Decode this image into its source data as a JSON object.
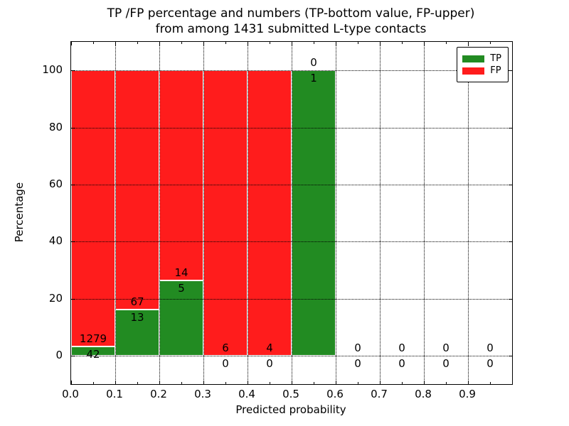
{
  "chart_data": {
    "type": "bar",
    "variant": "stacked-percentage",
    "title_line1": "TP /FP percentage and numbers (TP-bottom value, FP-upper)",
    "title_line2": "from among 1431 submitted L-type contacts",
    "total_contacts": 1431,
    "xlabel": "Predicted probability",
    "ylabel": "Percentage",
    "xlim": [
      0.0,
      1.0
    ],
    "ylim": [
      -10,
      110
    ],
    "grid": true,
    "yticks": [
      0,
      20,
      40,
      60,
      80,
      100
    ],
    "xtick_labels": [
      "0.0",
      "0.1",
      "0.2",
      "0.3",
      "0.4",
      "0.5",
      "0.6",
      "0.7",
      "0.8",
      "0.9"
    ],
    "bins": [
      {
        "range": "0.0-0.1",
        "tp": 42,
        "fp": 1279,
        "tp_pct": 3.18,
        "fp_pct": 96.82
      },
      {
        "range": "0.1-0.2",
        "tp": 13,
        "fp": 67,
        "tp_pct": 16.25,
        "fp_pct": 83.75
      },
      {
        "range": "0.2-0.3",
        "tp": 5,
        "fp": 14,
        "tp_pct": 26.32,
        "fp_pct": 73.68
      },
      {
        "range": "0.3-0.4",
        "tp": 0,
        "fp": 6,
        "tp_pct": 0,
        "fp_pct": 100
      },
      {
        "range": "0.4-0.5",
        "tp": 0,
        "fp": 4,
        "tp_pct": 0,
        "fp_pct": 100
      },
      {
        "range": "0.5-0.6",
        "tp": 1,
        "fp": 0,
        "tp_pct": 100,
        "fp_pct": 0
      },
      {
        "range": "0.6-0.7",
        "tp": 0,
        "fp": 0,
        "tp_pct": 0,
        "fp_pct": 0
      },
      {
        "range": "0.7-0.8",
        "tp": 0,
        "fp": 0,
        "tp_pct": 0,
        "fp_pct": 0
      },
      {
        "range": "0.8-0.9",
        "tp": 0,
        "fp": 0,
        "tp_pct": 0,
        "fp_pct": 0
      },
      {
        "range": "0.9-1.0",
        "tp": 0,
        "fp": 0,
        "tp_pct": 0,
        "fp_pct": 0
      }
    ],
    "legend": {
      "position": "upper-right",
      "items": [
        {
          "label": "TP",
          "color": "#228b22"
        },
        {
          "label": "FP",
          "color": "#ff1c1c"
        }
      ]
    },
    "colors": {
      "tp": "#228b22",
      "fp": "#ff1c1c",
      "bar_edge": "#ffffff",
      "grid": "#000000",
      "spine": "#000000"
    }
  }
}
